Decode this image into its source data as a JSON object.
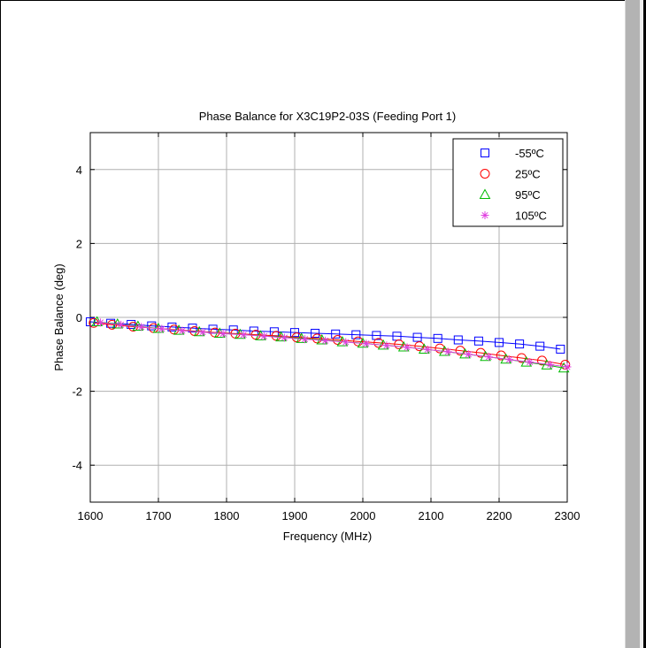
{
  "chart_data": {
    "type": "line",
    "title": "Phase Balance for X3C19P2-03S (Feeding Port 1)",
    "xlabel": "Frequency (MHz)",
    "ylabel": "Phase Balance (deg)",
    "xlim": [
      1600,
      2300
    ],
    "ylim": [
      -5,
      5
    ],
    "xticks": [
      1600,
      1700,
      1800,
      1900,
      2000,
      2100,
      2200,
      2300
    ],
    "yticks": [
      -4,
      -2,
      0,
      2,
      4
    ],
    "grid": true,
    "legend_position": "top-right",
    "series": [
      {
        "name": "-55ºC",
        "color": "#0000ff",
        "marker": "square",
        "x": [
          1600,
          1630,
          1660,
          1690,
          1720,
          1750,
          1780,
          1810,
          1840,
          1870,
          1900,
          1930,
          1960,
          1990,
          2020,
          2050,
          2080,
          2110,
          2140,
          2170,
          2200,
          2230,
          2260,
          2290
        ],
        "y": [
          -0.12,
          -0.16,
          -0.19,
          -0.23,
          -0.26,
          -0.29,
          -0.32,
          -0.34,
          -0.37,
          -0.39,
          -0.41,
          -0.43,
          -0.45,
          -0.47,
          -0.49,
          -0.51,
          -0.54,
          -0.57,
          -0.61,
          -0.64,
          -0.68,
          -0.72,
          -0.78,
          -0.86
        ]
      },
      {
        "name": "25ºC",
        "color": "#ff0000",
        "marker": "circle",
        "x": [
          1605,
          1632,
          1663,
          1693,
          1723,
          1753,
          1783,
          1813,
          1843,
          1873,
          1903,
          1933,
          1963,
          1993,
          2023,
          2053,
          2083,
          2113,
          2143,
          2173,
          2203,
          2233,
          2263,
          2297
        ],
        "y": [
          -0.15,
          -0.2,
          -0.25,
          -0.29,
          -0.33,
          -0.37,
          -0.41,
          -0.44,
          -0.47,
          -0.5,
          -0.54,
          -0.57,
          -0.61,
          -0.65,
          -0.69,
          -0.73,
          -0.78,
          -0.84,
          -0.9,
          -0.96,
          -1.03,
          -1.1,
          -1.17,
          -1.28
        ]
      },
      {
        "name": "95ºC",
        "color": "#00bb00",
        "marker": "triangle",
        "x": [
          1610,
          1640,
          1670,
          1700,
          1730,
          1760,
          1790,
          1820,
          1850,
          1880,
          1910,
          1940,
          1970,
          2000,
          2030,
          2060,
          2090,
          2120,
          2150,
          2180,
          2210,
          2240,
          2270,
          2295
        ],
        "y": [
          -0.12,
          -0.18,
          -0.24,
          -0.3,
          -0.35,
          -0.39,
          -0.43,
          -0.46,
          -0.5,
          -0.53,
          -0.57,
          -0.61,
          -0.66,
          -0.7,
          -0.75,
          -0.8,
          -0.86,
          -0.92,
          -0.99,
          -1.06,
          -1.13,
          -1.21,
          -1.29,
          -1.37
        ]
      },
      {
        "name": "105ºC",
        "color": "#e040e0",
        "marker": "star",
        "x": [
          1615,
          1645,
          1675,
          1705,
          1735,
          1765,
          1795,
          1825,
          1855,
          1885,
          1915,
          1945,
          1975,
          2005,
          2035,
          2065,
          2095,
          2125,
          2155,
          2185,
          2215,
          2245,
          2275,
          2300
        ],
        "y": [
          -0.14,
          -0.2,
          -0.26,
          -0.31,
          -0.36,
          -0.4,
          -0.44,
          -0.47,
          -0.51,
          -0.55,
          -0.59,
          -0.63,
          -0.67,
          -0.71,
          -0.76,
          -0.81,
          -0.87,
          -0.93,
          -1.0,
          -1.07,
          -1.14,
          -1.21,
          -1.28,
          -1.34
        ]
      }
    ]
  }
}
